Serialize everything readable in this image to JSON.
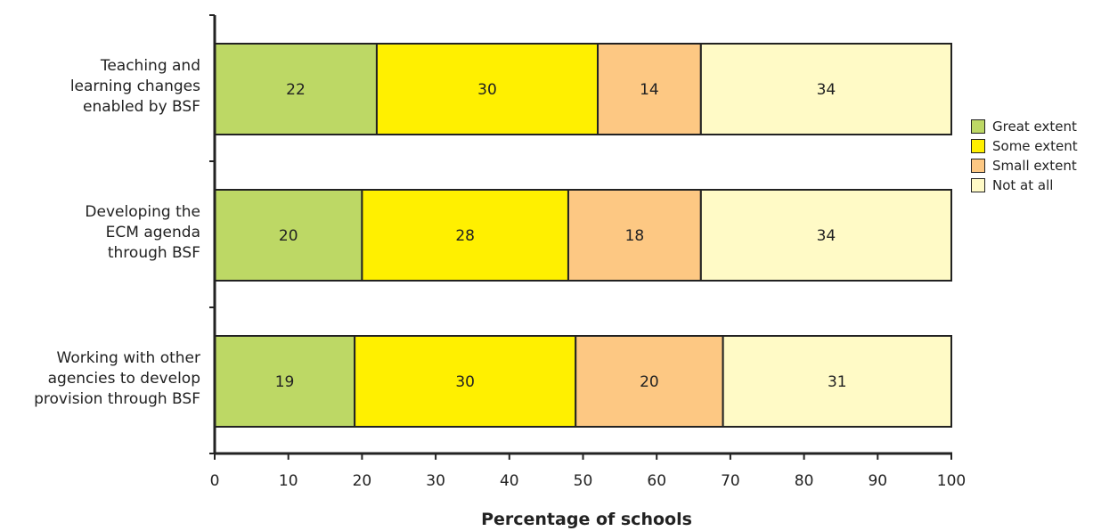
{
  "chart_data": {
    "type": "bar",
    "orientation": "horizontal",
    "stacked": true,
    "categories": [
      "Teaching and\nlearning changes\nenabled by BSF",
      "Developing the\nECM agenda\nthrough BSF",
      "Working with other\nagencies to develop\nprovision through BSF"
    ],
    "series": [
      {
        "name": "Great extent",
        "color": "#bdd865",
        "values": [
          22,
          20,
          19
        ]
      },
      {
        "name": "Some extent",
        "color": "#fff000",
        "values": [
          30,
          28,
          30
        ]
      },
      {
        "name": "Small extent",
        "color": "#fdc883",
        "values": [
          14,
          18,
          20
        ]
      },
      {
        "name": "Not at all",
        "color": "#fffac6",
        "values": [
          34,
          34,
          31
        ]
      }
    ],
    "xlabel": "Percentage of schools",
    "ylabel": "",
    "xlim": [
      0,
      100
    ],
    "xticks": [
      "0",
      "10",
      "20",
      "30",
      "40",
      "50",
      "60",
      "70",
      "80",
      "90",
      "100"
    ],
    "grid": false,
    "legend_position": "right"
  }
}
